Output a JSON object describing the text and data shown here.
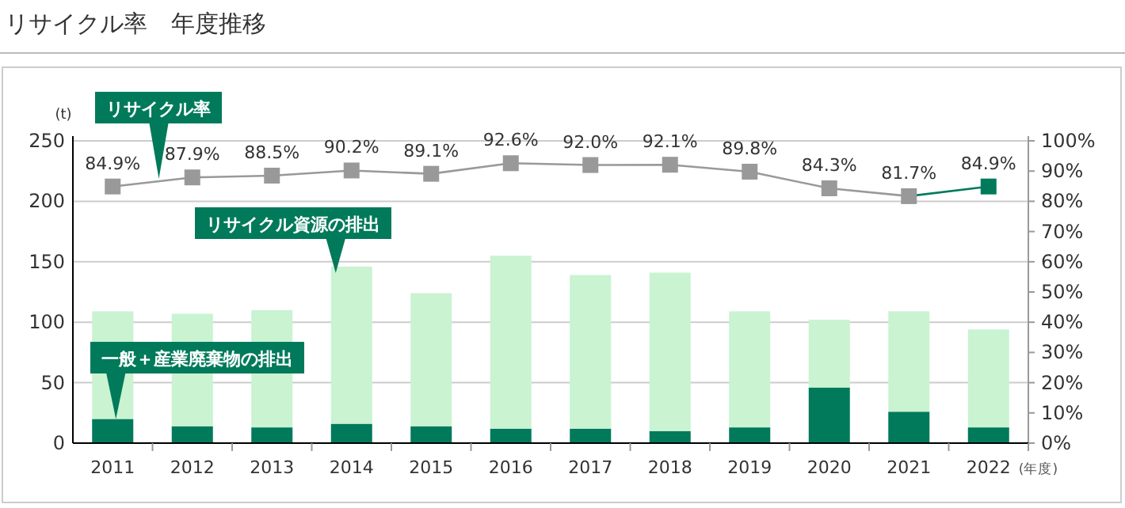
{
  "chart_data": {
    "type": "bar",
    "title": "リサイクル率　年度推移",
    "ylabel": "(t)",
    "xlabel": "(年度)",
    "stacked": true,
    "grid": "y",
    "categories": [
      "2011",
      "2012",
      "2013",
      "2014",
      "2015",
      "2016",
      "2017",
      "2018",
      "2019",
      "2020",
      "2021",
      "2022"
    ],
    "ylim": [
      0,
      250
    ],
    "yticks": [
      0,
      50,
      100,
      150,
      200,
      250
    ],
    "y2lim": [
      0,
      100
    ],
    "y2ticks": [
      {
        "value": 0,
        "label": "0%"
      },
      {
        "value": 10,
        "label": "10%"
      },
      {
        "value": 20,
        "label": "20%"
      },
      {
        "value": 30,
        "label": "30%"
      },
      {
        "value": 40,
        "label": "40%"
      },
      {
        "value": 50,
        "label": "50%"
      },
      {
        "value": 60,
        "label": "60%"
      },
      {
        "value": 70,
        "label": "70%"
      },
      {
        "value": 80,
        "label": "80%"
      },
      {
        "value": 90,
        "label": "90%"
      },
      {
        "value": 100,
        "label": "100%"
      }
    ],
    "series": [
      {
        "name": "一般＋産業廃棄物の排出",
        "color": "#007a5a",
        "values": [
          20,
          14,
          13,
          16,
          14,
          12,
          12,
          10,
          13,
          46,
          26,
          13
        ]
      },
      {
        "name": "リサイクル資源の排出",
        "color": "#c9f3d1",
        "values": [
          89,
          93,
          97,
          130,
          110,
          143,
          127,
          131,
          96,
          56,
          83,
          81
        ]
      },
      {
        "name": "リサイクル率",
        "type": "line",
        "axis": "y2",
        "marker": "square",
        "color": "#999999",
        "colors": [
          "#999999",
          "#999999",
          "#999999",
          "#999999",
          "#999999",
          "#999999",
          "#999999",
          "#999999",
          "#999999",
          "#999999",
          "#999999",
          "#007a5a"
        ],
        "values": [
          84.9,
          87.9,
          88.5,
          90.2,
          89.1,
          92.6,
          92.0,
          92.1,
          89.8,
          84.3,
          81.7,
          84.9
        ],
        "value_labels": [
          "84.9%",
          "87.9%",
          "88.5%",
          "90.2%",
          "89.1%",
          "92.6%",
          "92.0%",
          "92.1%",
          "89.8%",
          "84.3%",
          "81.7%",
          "84.9%"
        ]
      }
    ]
  }
}
